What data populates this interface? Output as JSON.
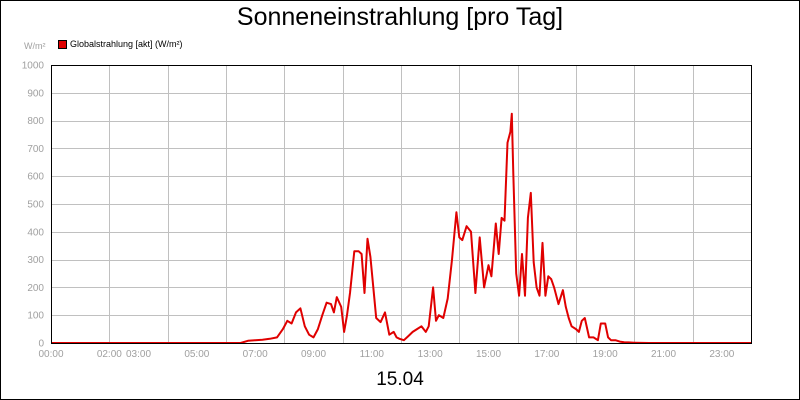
{
  "chart_data": {
    "type": "line",
    "title": "Sonneneinstrahlung [pro Tag]",
    "xlabel": "15.04",
    "ylabel": "W/m²",
    "ylim": [
      0,
      1000
    ],
    "xlim": [
      0,
      24
    ],
    "y_ticks": [
      0,
      100,
      200,
      300,
      400,
      500,
      600,
      700,
      800,
      900,
      1000
    ],
    "x_ticks": [
      {
        "h": 0,
        "label": "00:00"
      },
      {
        "h": 2,
        "label": "02:00"
      },
      {
        "h": 3,
        "label": "03:00"
      },
      {
        "h": 5,
        "label": "05:00"
      },
      {
        "h": 7,
        "label": "07:00"
      },
      {
        "h": 9,
        "label": "09:00"
      },
      {
        "h": 11,
        "label": "11:00"
      },
      {
        "h": 13,
        "label": "13:00"
      },
      {
        "h": 15,
        "label": "15:00"
      },
      {
        "h": 17,
        "label": "17:00"
      },
      {
        "h": 19,
        "label": "19:00"
      },
      {
        "h": 21,
        "label": "21:00"
      },
      {
        "h": 23,
        "label": "23:00"
      }
    ],
    "grid": true,
    "legend_position": "top-left",
    "series": [
      {
        "name": "Globalstrahlung [akt] (W/m²)",
        "color": "#e00000",
        "x": [
          0,
          6.5,
          6.75,
          7.0,
          7.25,
          7.5,
          7.75,
          7.95,
          8.1,
          8.25,
          8.4,
          8.55,
          8.7,
          8.85,
          9.0,
          9.15,
          9.3,
          9.45,
          9.6,
          9.7,
          9.8,
          9.95,
          10.05,
          10.15,
          10.25,
          10.4,
          10.55,
          10.65,
          10.75,
          10.85,
          10.95,
          11.05,
          11.15,
          11.3,
          11.45,
          11.6,
          11.75,
          11.85,
          11.95,
          12.1,
          12.25,
          12.4,
          12.55,
          12.7,
          12.85,
          12.95,
          13.1,
          13.2,
          13.3,
          13.45,
          13.6,
          13.75,
          13.9,
          14.0,
          14.1,
          14.25,
          14.4,
          14.55,
          14.7,
          14.85,
          15.0,
          15.1,
          15.25,
          15.35,
          15.45,
          15.55,
          15.65,
          15.75,
          15.8,
          15.85,
          15.95,
          16.05,
          16.15,
          16.25,
          16.35,
          16.45,
          16.55,
          16.65,
          16.75,
          16.85,
          16.95,
          17.05,
          17.15,
          17.25,
          17.4,
          17.55,
          17.65,
          17.75,
          17.85,
          18.0,
          18.1,
          18.2,
          18.3,
          18.45,
          18.6,
          18.75,
          18.85,
          19.0,
          19.1,
          19.2,
          19.35,
          19.5,
          19.65,
          19.8,
          20.0,
          20.5,
          24.0
        ],
        "values": [
          0,
          0,
          8,
          10,
          12,
          15,
          20,
          50,
          80,
          70,
          110,
          125,
          60,
          30,
          20,
          50,
          100,
          145,
          140,
          110,
          165,
          130,
          40,
          100,
          180,
          330,
          330,
          320,
          180,
          375,
          310,
          200,
          90,
          75,
          110,
          30,
          40,
          20,
          15,
          10,
          25,
          40,
          50,
          60,
          40,
          60,
          200,
          80,
          100,
          90,
          160,
          300,
          470,
          380,
          370,
          420,
          400,
          180,
          380,
          200,
          280,
          240,
          430,
          320,
          450,
          440,
          720,
          760,
          825,
          610,
          250,
          170,
          320,
          170,
          450,
          540,
          290,
          200,
          170,
          360,
          170,
          240,
          230,
          200,
          140,
          190,
          130,
          90,
          60,
          50,
          40,
          80,
          90,
          20,
          20,
          10,
          70,
          70,
          20,
          10,
          10,
          5,
          3,
          2,
          1,
          0,
          0
        ]
      }
    ]
  }
}
